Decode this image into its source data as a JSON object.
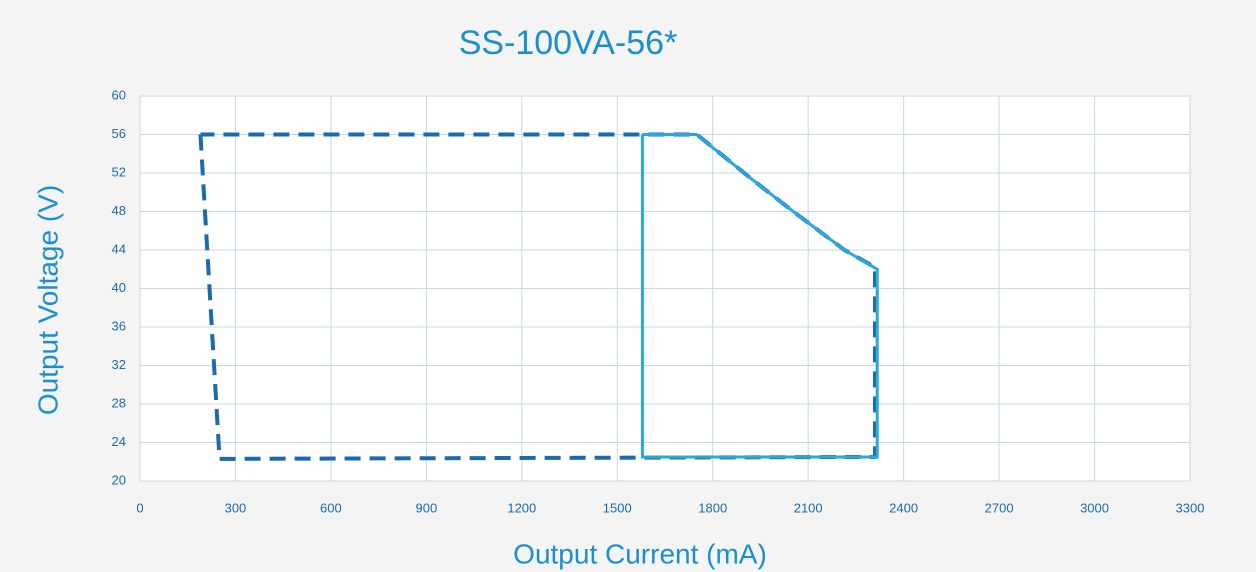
{
  "chart_data": {
    "type": "line",
    "title": "SS-100VA-56*",
    "x_label": "Output Current (mA)",
    "y_label": "Output  Voltage (V)",
    "xlim": [
      0,
      3300
    ],
    "ylim": [
      20,
      60
    ],
    "xticks": [
      0,
      300,
      600,
      900,
      1200,
      1500,
      1800,
      2100,
      2400,
      2700,
      3000,
      3300
    ],
    "yticks": [
      20,
      24,
      28,
      32,
      36,
      40,
      44,
      48,
      52,
      56,
      60
    ],
    "grid": true,
    "series": [
      {
        "color": "#1a6aad",
        "line_style": "dashed",
        "x": [
          190,
          250,
          2310,
          2310,
          2214,
          2053,
          1925,
          1750,
          190
        ],
        "values": [
          56,
          22.3,
          22.5,
          42.2,
          44,
          48,
          51.3,
          56,
          56
        ]
      },
      {
        "color": "#2aa8dc",
        "line_style": "solid",
        "x": [
          1579,
          1579,
          2317,
          2317,
          2214,
          2053,
          1925,
          1749,
          1579
        ],
        "values": [
          56,
          22.5,
          22.5,
          42,
          44,
          48,
          51.3,
          56,
          56
        ]
      }
    ]
  }
}
